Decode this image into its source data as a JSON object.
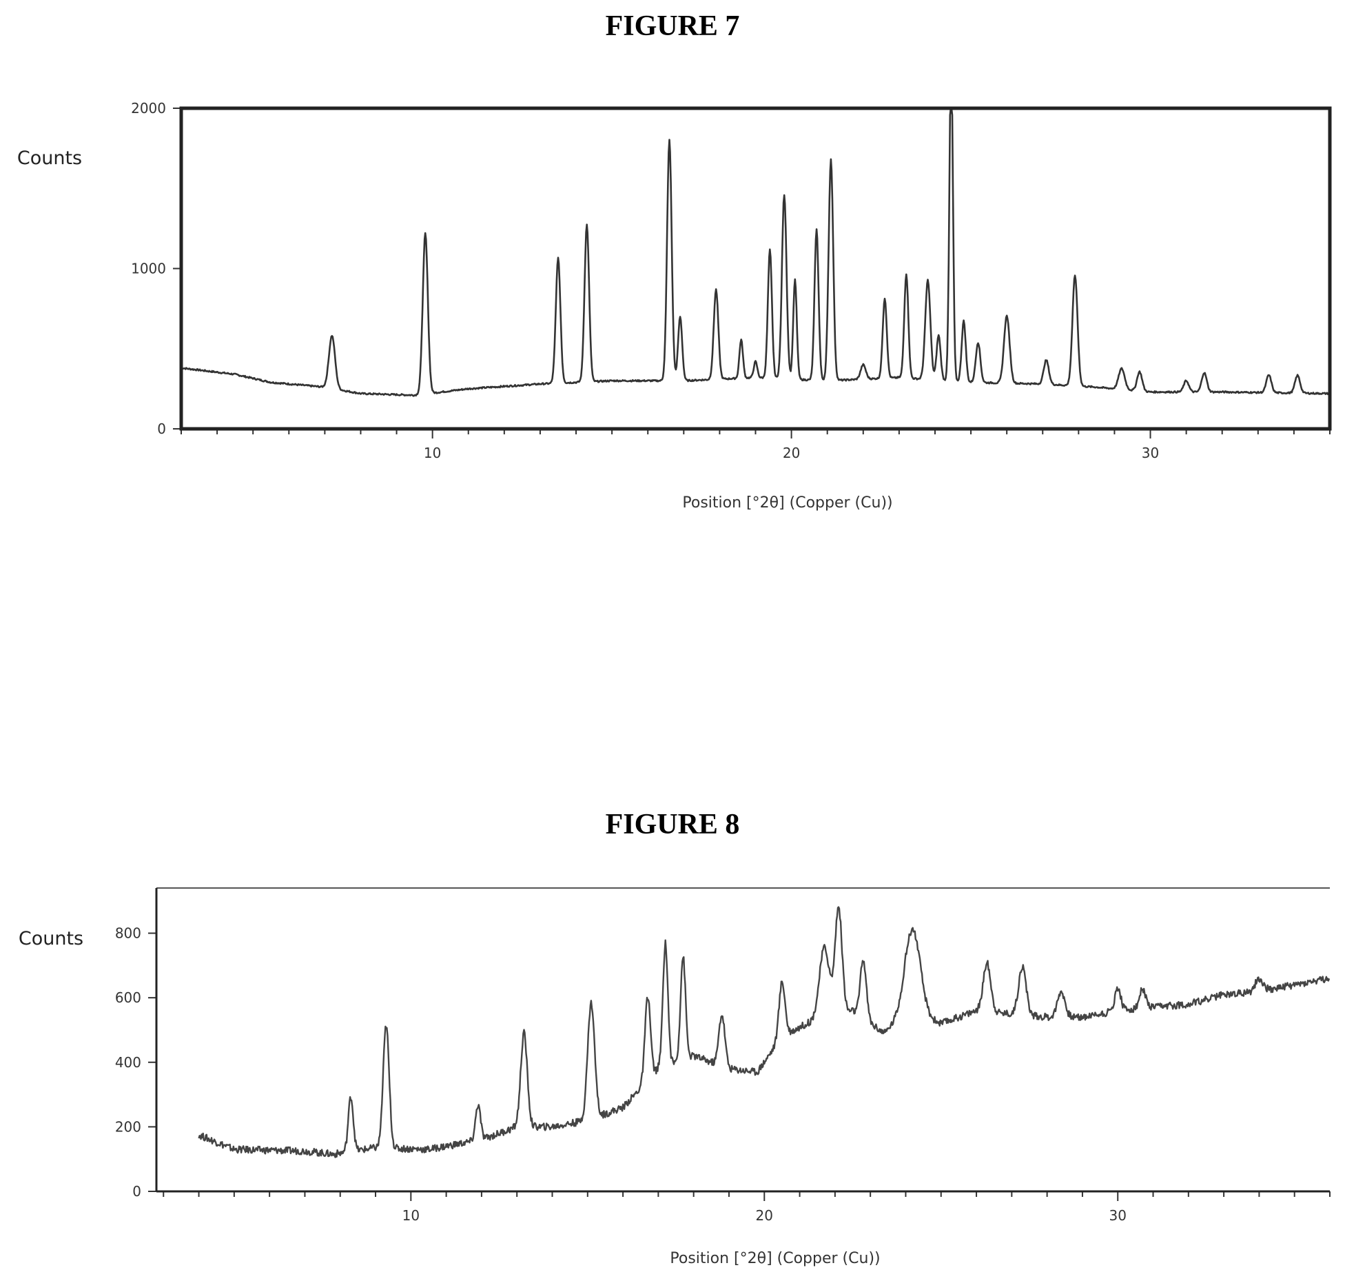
{
  "figures": {
    "fig7_title": "FIGURE 7",
    "fig8_title": "FIGURE 8"
  },
  "chart_data": [
    {
      "type": "line",
      "title": "FIGURE 7",
      "xlabel": "Position [°2θ] (Copper (Cu))",
      "ylabel": "Counts",
      "xlim": [
        3,
        35
      ],
      "ylim": [
        0,
        2000
      ],
      "xticks": [
        10,
        20,
        30
      ],
      "yticks": [
        0,
        1000,
        2000
      ],
      "grid": false,
      "color": "#333333",
      "baseline": [
        [
          3,
          380
        ],
        [
          4.5,
          340
        ],
        [
          5.5,
          290
        ],
        [
          7,
          260
        ],
        [
          8,
          220
        ],
        [
          9.5,
          210
        ],
        [
          11,
          250
        ],
        [
          13,
          280
        ],
        [
          15,
          300
        ],
        [
          17,
          300
        ],
        [
          19,
          320
        ],
        [
          21,
          300
        ],
        [
          23,
          320
        ],
        [
          25,
          290
        ],
        [
          27,
          280
        ],
        [
          28.5,
          260
        ],
        [
          30,
          230
        ],
        [
          32,
          230
        ],
        [
          35,
          220
        ]
      ],
      "peaks": [
        {
          "x": 7.2,
          "y": 330,
          "w": 0.12
        },
        {
          "x": 9.8,
          "y": 1000,
          "w": 0.1
        },
        {
          "x": 13.5,
          "y": 780,
          "w": 0.09
        },
        {
          "x": 14.3,
          "y": 980,
          "w": 0.09
        },
        {
          "x": 16.6,
          "y": 1500,
          "w": 0.09
        },
        {
          "x": 16.9,
          "y": 400,
          "w": 0.08
        },
        {
          "x": 17.9,
          "y": 560,
          "w": 0.09
        },
        {
          "x": 18.6,
          "y": 240,
          "w": 0.07
        },
        {
          "x": 19.0,
          "y": 100,
          "w": 0.07
        },
        {
          "x": 19.4,
          "y": 800,
          "w": 0.08
        },
        {
          "x": 19.8,
          "y": 1150,
          "w": 0.09
        },
        {
          "x": 20.1,
          "y": 620,
          "w": 0.07
        },
        {
          "x": 20.7,
          "y": 940,
          "w": 0.08
        },
        {
          "x": 21.1,
          "y": 1380,
          "w": 0.09
        },
        {
          "x": 22.0,
          "y": 90,
          "w": 0.1
        },
        {
          "x": 22.6,
          "y": 500,
          "w": 0.08
        },
        {
          "x": 23.2,
          "y": 650,
          "w": 0.08
        },
        {
          "x": 23.8,
          "y": 620,
          "w": 0.1
        },
        {
          "x": 24.1,
          "y": 280,
          "w": 0.08
        },
        {
          "x": 24.45,
          "y": 1990,
          "w": 0.07
        },
        {
          "x": 24.8,
          "y": 380,
          "w": 0.08
        },
        {
          "x": 25.2,
          "y": 250,
          "w": 0.09
        },
        {
          "x": 26.0,
          "y": 420,
          "w": 0.11
        },
        {
          "x": 27.1,
          "y": 150,
          "w": 0.1
        },
        {
          "x": 27.9,
          "y": 690,
          "w": 0.1
        },
        {
          "x": 29.2,
          "y": 130,
          "w": 0.12
        },
        {
          "x": 29.7,
          "y": 120,
          "w": 0.1
        },
        {
          "x": 31.0,
          "y": 70,
          "w": 0.1
        },
        {
          "x": 31.5,
          "y": 120,
          "w": 0.1
        },
        {
          "x": 33.3,
          "y": 110,
          "w": 0.1
        },
        {
          "x": 34.1,
          "y": 110,
          "w": 0.1
        }
      ]
    },
    {
      "type": "line",
      "title": "FIGURE 8",
      "xlabel": "Position [°2θ] (Copper (Cu))",
      "ylabel": "Counts",
      "xlim": [
        2.8,
        36
      ],
      "ylim": [
        0,
        940
      ],
      "xticks": [
        10,
        20,
        30
      ],
      "yticks": [
        0,
        200,
        400,
        600,
        800
      ],
      "grid": false,
      "color": "#444444",
      "baseline": [
        [
          4,
          175
        ],
        [
          5,
          130
        ],
        [
          7,
          125
        ],
        [
          7.8,
          115
        ],
        [
          9,
          135
        ],
        [
          10.5,
          130
        ],
        [
          12,
          160
        ],
        [
          13,
          200
        ],
        [
          14,
          200
        ],
        [
          15,
          220
        ],
        [
          16,
          260
        ],
        [
          17,
          380
        ],
        [
          18,
          420
        ],
        [
          19,
          380
        ],
        [
          19.8,
          370
        ],
        [
          20.5,
          480
        ],
        [
          21.2,
          520
        ],
        [
          22.5,
          560
        ],
        [
          23.4,
          490
        ],
        [
          24,
          560
        ],
        [
          25,
          520
        ],
        [
          26,
          560
        ],
        [
          27,
          550
        ],
        [
          28,
          540
        ],
        [
          29,
          540
        ],
        [
          30,
          560
        ],
        [
          31,
          570
        ],
        [
          32,
          580
        ],
        [
          33,
          610
        ],
        [
          34,
          620
        ],
        [
          35,
          640
        ],
        [
          36,
          660
        ]
      ],
      "peaks": [
        {
          "x": 8.3,
          "y": 170,
          "w": 0.1
        },
        {
          "x": 9.3,
          "y": 380,
          "w": 0.12
        },
        {
          "x": 11.9,
          "y": 110,
          "w": 0.1
        },
        {
          "x": 13.2,
          "y": 290,
          "w": 0.13
        },
        {
          "x": 15.1,
          "y": 360,
          "w": 0.14
        },
        {
          "x": 16.7,
          "y": 260,
          "w": 0.11
        },
        {
          "x": 17.2,
          "y": 380,
          "w": 0.1
        },
        {
          "x": 17.7,
          "y": 320,
          "w": 0.1
        },
        {
          "x": 18.8,
          "y": 160,
          "w": 0.12
        },
        {
          "x": 20.5,
          "y": 170,
          "w": 0.12
        },
        {
          "x": 21.7,
          "y": 220,
          "w": 0.2
        },
        {
          "x": 22.1,
          "y": 330,
          "w": 0.14
        },
        {
          "x": 22.8,
          "y": 180,
          "w": 0.12
        },
        {
          "x": 24.2,
          "y": 260,
          "w": 0.3
        },
        {
          "x": 26.3,
          "y": 150,
          "w": 0.15
        },
        {
          "x": 27.3,
          "y": 150,
          "w": 0.15
        },
        {
          "x": 28.4,
          "y": 80,
          "w": 0.15
        },
        {
          "x": 30.0,
          "y": 70,
          "w": 0.12
        },
        {
          "x": 30.7,
          "y": 60,
          "w": 0.12
        },
        {
          "x": 34.0,
          "y": 40,
          "w": 0.15
        }
      ]
    }
  ]
}
